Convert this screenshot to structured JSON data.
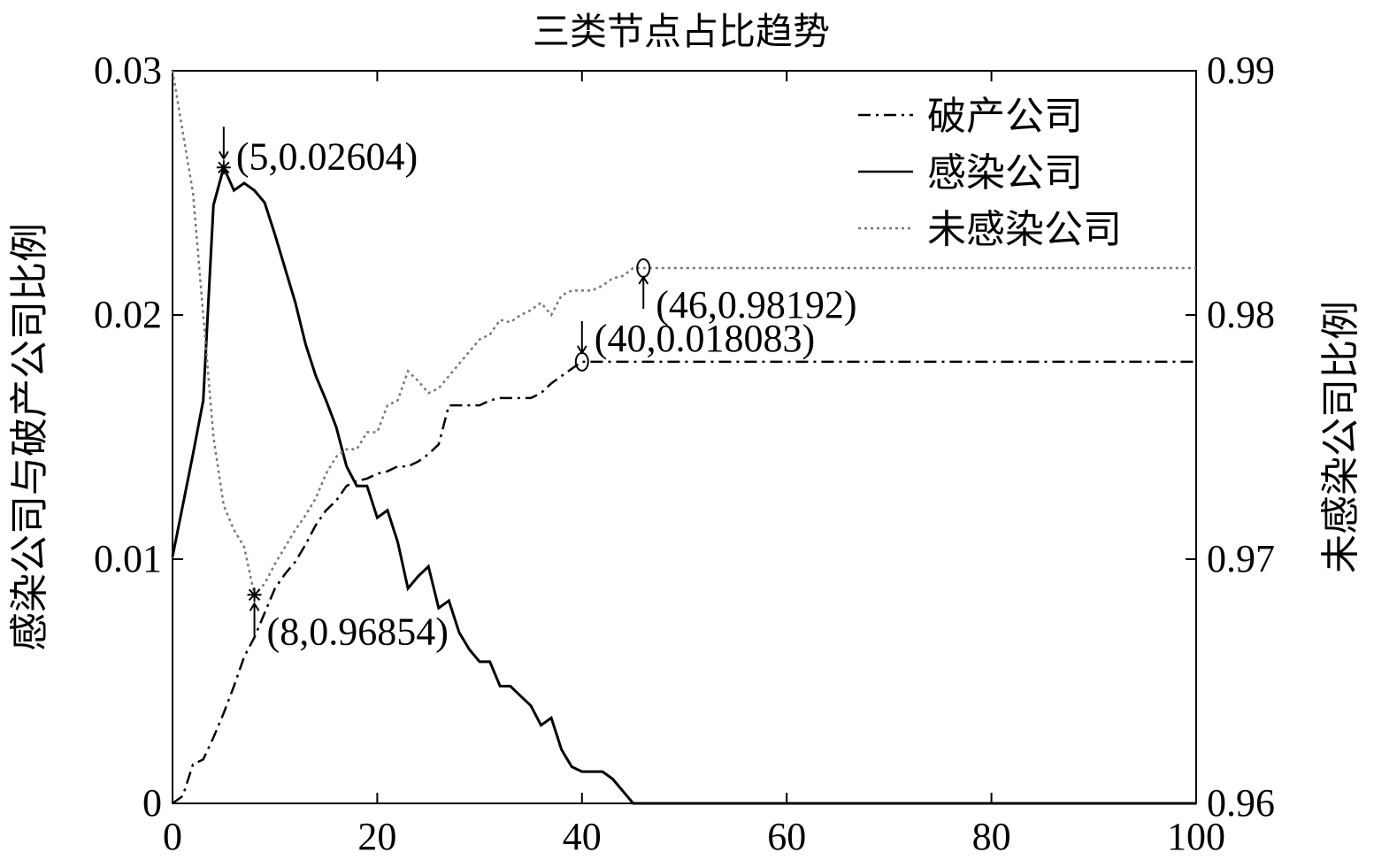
{
  "chart_data": {
    "type": "line",
    "title": "三类节点占比趋势",
    "ylabel": "感染公司与破产公司比例",
    "y2label": "未感染公司比例",
    "x": [
      0,
      1,
      2,
      3,
      4,
      5,
      6,
      7,
      8,
      9,
      10,
      11,
      12,
      13,
      14,
      15,
      16,
      17,
      18,
      19,
      20,
      21,
      22,
      23,
      24,
      25,
      26,
      27,
      28,
      29,
      30,
      31,
      32,
      33,
      34,
      35,
      36,
      37,
      38,
      39,
      40,
      41,
      42,
      43,
      44,
      45,
      46,
      100
    ],
    "xlim": [
      0,
      100
    ],
    "xticks": [
      0,
      20,
      40,
      60,
      80,
      100
    ],
    "ylim": [
      0,
      0.03
    ],
    "yticks": [
      0,
      0.01,
      0.02,
      0.03
    ],
    "y2lim": [
      0.96,
      0.99
    ],
    "y2ticks": [
      0.96,
      0.97,
      0.98,
      0.99
    ],
    "legend": "upper right",
    "series": [
      {
        "name": "破产公司",
        "color": "#000000",
        "linestyle": "-.",
        "values": [
          0,
          0.0003,
          0.0016,
          0.0018,
          0.0027,
          0.0037,
          0.0048,
          0.006,
          0.0068,
          0.0078,
          0.0088,
          0.0094,
          0.0099,
          0.0106,
          0.0114,
          0.012,
          0.0124,
          0.013,
          0.0132,
          0.0133,
          0.0135,
          0.0136,
          0.0138,
          0.0138,
          0.014,
          0.0143,
          0.0147,
          0.0163,
          0.0163,
          0.0163,
          0.0163,
          0.0165,
          0.0166,
          0.0166,
          0.0166,
          0.0166,
          0.0168,
          0.0172,
          0.0175,
          0.0178,
          0.018083,
          0.018083,
          0.018083,
          0.018083,
          0.018083,
          0.018083,
          0.018083,
          0.018083
        ]
      },
      {
        "name": "感染公司",
        "color": "#000000",
        "linestyle": "-",
        "values": [
          0.0101,
          0.0122,
          0.0143,
          0.0165,
          0.0245,
          0.02604,
          0.0251,
          0.0254,
          0.0251,
          0.0246,
          0.0233,
          0.0219,
          0.0205,
          0.0188,
          0.0175,
          0.0165,
          0.0154,
          0.0138,
          0.013,
          0.013,
          0.0117,
          0.012,
          0.0107,
          0.0088,
          0.0093,
          0.0097,
          0.008,
          0.0083,
          0.007,
          0.0063,
          0.0058,
          0.0058,
          0.0048,
          0.0048,
          0.0044,
          0.004,
          0.0032,
          0.0035,
          0.0022,
          0.0015,
          0.0013,
          0.0013,
          0.0013,
          0.001,
          0.0005,
          0,
          0,
          0
        ]
      },
      {
        "name": "未感染公司",
        "color": "#777777",
        "linestyle": ":",
        "axis": "y2",
        "values": [
          0.99,
          0.9875,
          0.985,
          0.98,
          0.975,
          0.9722,
          0.9712,
          0.9705,
          0.96854,
          0.969,
          0.9698,
          0.9705,
          0.9712,
          0.9718,
          0.9725,
          0.9735,
          0.9742,
          0.9745,
          0.9745,
          0.9752,
          0.9752,
          0.9763,
          0.9765,
          0.9777,
          0.9773,
          0.9768,
          0.977,
          0.9775,
          0.978,
          0.9785,
          0.979,
          0.9792,
          0.9798,
          0.9797,
          0.98,
          0.9802,
          0.9805,
          0.98,
          0.9808,
          0.981,
          0.981,
          0.981,
          0.9812,
          0.9815,
          0.9816,
          0.98192,
          0.98192,
          0.98192
        ]
      }
    ],
    "annotations": [
      {
        "text": "(5,0.02604)",
        "x": 5,
        "y": 0.02604,
        "marker": "*"
      },
      {
        "text": "(8,0.96854)",
        "x": 8,
        "y": 0.96854,
        "marker": "*",
        "axis": "y2"
      },
      {
        "text": "(40,0.018083)",
        "x": 40,
        "y": 0.018083,
        "marker": "o"
      },
      {
        "text": "(46,0.98192)",
        "x": 46,
        "y": 0.98192,
        "marker": "o",
        "axis": "y2"
      }
    ]
  }
}
